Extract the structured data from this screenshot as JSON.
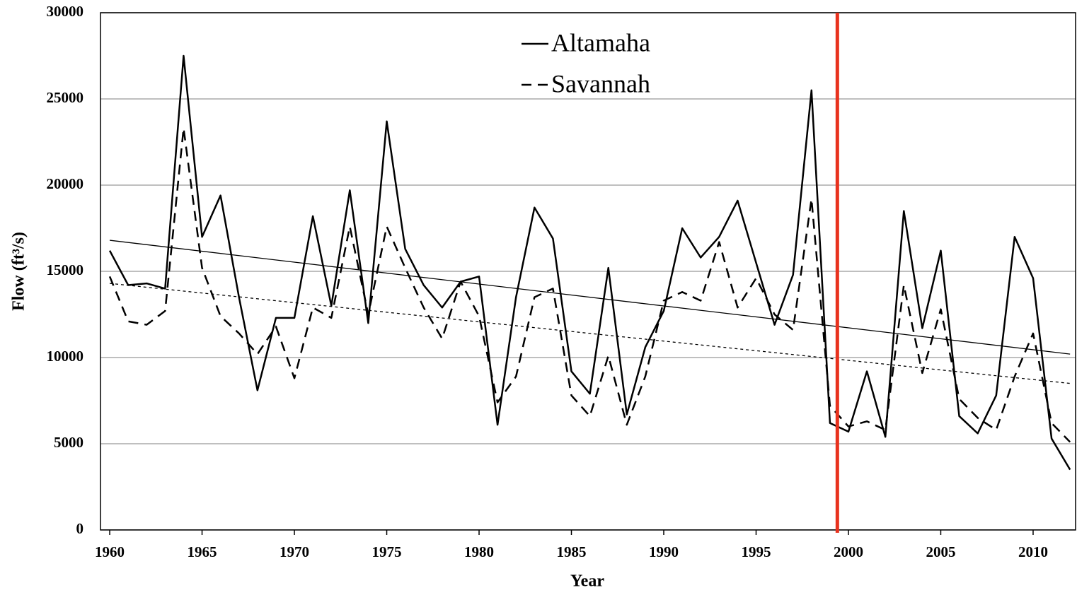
{
  "chart_data": {
    "type": "line",
    "x_label": "Year",
    "y_label": "Flow (ft³/s)",
    "x": [
      1960,
      1961,
      1962,
      1963,
      1964,
      1965,
      1966,
      1967,
      1968,
      1969,
      1970,
      1971,
      1972,
      1973,
      1974,
      1975,
      1976,
      1977,
      1978,
      1979,
      1980,
      1981,
      1982,
      1983,
      1984,
      1985,
      1986,
      1987,
      1988,
      1989,
      1990,
      1991,
      1992,
      1993,
      1994,
      1995,
      1996,
      1997,
      1998,
      1999,
      2000,
      2001,
      2002,
      2003,
      2004,
      2005,
      2006,
      2007,
      2008,
      2009,
      2010,
      2011,
      2012
    ],
    "series": [
      {
        "name": "Altamaha",
        "color": "#000000",
        "dash": "solid",
        "values": [
          16200,
          14200,
          14300,
          14000,
          27500,
          17000,
          19400,
          13500,
          8100,
          12300,
          12300,
          18200,
          13000,
          19700,
          12000,
          23700,
          16300,
          14200,
          12900,
          14400,
          14700,
          6100,
          13500,
          18700,
          16900,
          9200,
          7900,
          15200,
          6700,
          10600,
          12700,
          17500,
          15800,
          17000,
          19100,
          15500,
          11900,
          14800,
          25500,
          6200,
          5700,
          9200,
          5400,
          18500,
          11700,
          16200,
          6600,
          5600,
          7800,
          17000,
          14600,
          5300,
          3500
        ]
      },
      {
        "name": "Savannah",
        "color": "#000000",
        "dash": "dashed",
        "values": [
          14700,
          12100,
          11900,
          12700,
          23300,
          15200,
          12400,
          11400,
          10200,
          11800,
          8800,
          12900,
          12300,
          17600,
          12500,
          17600,
          15200,
          12900,
          11100,
          14400,
          12400,
          7400,
          8900,
          13500,
          14000,
          7800,
          6600,
          10100,
          6100,
          8900,
          13300,
          13800,
          13300,
          16700,
          12900,
          14600,
          12500,
          11600,
          19200,
          7200,
          6000,
          6300,
          5800,
          14200,
          9100,
          12800,
          7600,
          6500,
          5800,
          8900,
          11400,
          6200,
          5100
        ]
      }
    ],
    "trendlines": [
      {
        "x": [
          1960,
          2012
        ],
        "values": [
          16800,
          10200
        ],
        "dash": "solid"
      },
      {
        "x": [
          1960,
          2012
        ],
        "values": [
          14300,
          8500
        ],
        "dash": "dotted"
      }
    ],
    "reference_line": {
      "x": 1999.4,
      "color": "#e8321e"
    },
    "xlim": [
      1959.5,
      2012.3
    ],
    "xticks": [
      1960,
      1965,
      1970,
      1975,
      1980,
      1985,
      1990,
      1995,
      2000,
      2005,
      2010
    ],
    "ylim": [
      0,
      30000
    ],
    "yticks": [
      0,
      5000,
      10000,
      15000,
      20000,
      25000,
      30000
    ],
    "grid": true,
    "legend": "top"
  }
}
